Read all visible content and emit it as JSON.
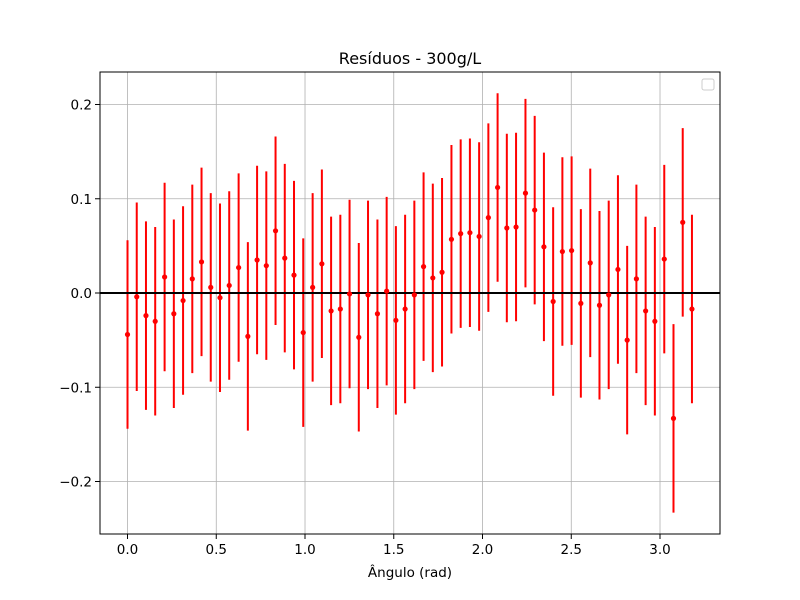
{
  "chart_data": {
    "type": "scatter",
    "title": "Resíduos - 300g/L",
    "xlabel": "Ângulo (rad)",
    "ylabel": "",
    "xlim": [
      -0.155,
      3.338
    ],
    "ylim": [
      -0.2557,
      0.2345
    ],
    "xticks": [
      0,
      0.5,
      1.0,
      1.5,
      2.0,
      2.5,
      3.0
    ],
    "xtick_labels": [
      "0.0",
      "0.5",
      "1.0",
      "1.5",
      "2.0",
      "2.5",
      "3.0"
    ],
    "yticks": [
      -0.2,
      -0.1,
      0.0,
      0.1,
      0.2
    ],
    "ytick_labels": [
      "−0.2",
      "−0.1",
      "0.0",
      "0.1",
      "0.2"
    ],
    "grid": true,
    "legend": "upper right",
    "legend_entries": [],
    "hline": {
      "y": 0,
      "color": "#000000"
    },
    "series": [
      {
        "color": "#ff0000",
        "marker": "o",
        "yerr": 0.1,
        "x": [
          0.0,
          0.052,
          0.104,
          0.156,
          0.209,
          0.261,
          0.313,
          0.365,
          0.417,
          0.469,
          0.521,
          0.573,
          0.626,
          0.678,
          0.73,
          0.782,
          0.834,
          0.886,
          0.938,
          0.99,
          1.043,
          1.095,
          1.147,
          1.199,
          1.251,
          1.303,
          1.355,
          1.408,
          1.46,
          1.512,
          1.564,
          1.616,
          1.668,
          1.72,
          1.772,
          1.825,
          1.877,
          1.929,
          1.981,
          2.033,
          2.085,
          2.137,
          2.189,
          2.242,
          2.294,
          2.346,
          2.398,
          2.45,
          2.502,
          2.554,
          2.607,
          2.659,
          2.711,
          2.763,
          2.815,
          2.867,
          2.919,
          2.971,
          3.024,
          3.076,
          3.128,
          3.18
        ],
        "y": [
          -0.044,
          -0.004,
          -0.024,
          -0.03,
          0.017,
          -0.022,
          -0.008,
          0.015,
          0.033,
          0.006,
          -0.005,
          0.008,
          0.027,
          -0.046,
          0.035,
          0.029,
          0.066,
          0.037,
          0.019,
          -0.042,
          0.006,
          0.031,
          -0.019,
          -0.017,
          -0.001,
          -0.047,
          -0.002,
          -0.022,
          0.002,
          -0.029,
          -0.017,
          -0.002,
          0.028,
          0.016,
          0.022,
          0.057,
          0.063,
          0.064,
          0.06,
          0.08,
          0.112,
          0.069,
          0.07,
          0.106,
          0.088,
          0.049,
          -0.009,
          0.044,
          0.045,
          -0.011,
          0.032,
          -0.013,
          -0.002,
          0.025,
          -0.05,
          0.015,
          -0.019,
          -0.03,
          0.036,
          -0.133,
          0.075,
          -0.017
        ]
      }
    ]
  }
}
